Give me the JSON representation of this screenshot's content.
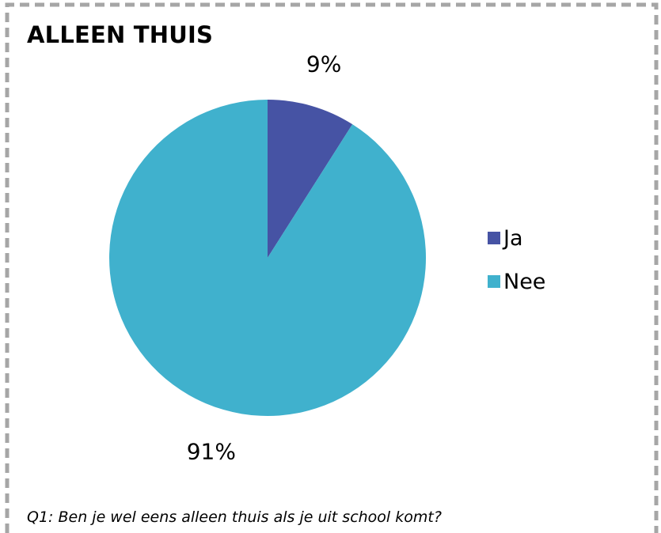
{
  "title": "ALLEEN THUIS",
  "question": "Q1: Ben je wel eens alleen thuis als je uit school komt?",
  "border_color": "#a6a6a6",
  "chart_data": {
    "type": "pie",
    "title": "ALLEEN THUIS",
    "start_angle_deg": 0,
    "direction": "clockwise",
    "legend_position": "right",
    "slices": [
      {
        "label": "Ja",
        "value": 9,
        "percent_label": "9%",
        "color": "#4653a4"
      },
      {
        "label": "Nee",
        "value": 91,
        "percent_label": "91%",
        "color": "#40b1cd"
      }
    ]
  }
}
